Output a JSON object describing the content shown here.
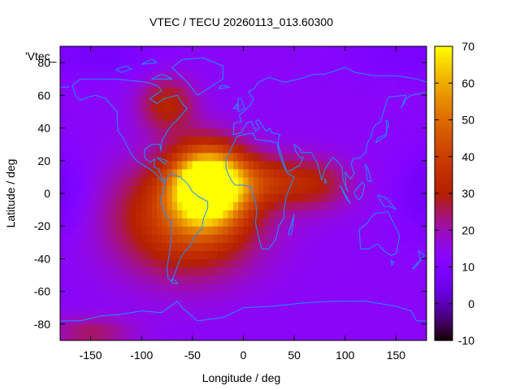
{
  "chart_data": {
    "type": "heatmap",
    "title": "VTEC / TECU 20260113_013.60300",
    "xlabel": "Longitude / deg",
    "ylabel": "Latitude / deg",
    "key_label": "'Vtec_",
    "xlim": [
      -180,
      180
    ],
    "ylim": [
      -90,
      90
    ],
    "x_ticks": [
      -150,
      -100,
      -50,
      0,
      50,
      100,
      150
    ],
    "y_ticks": [
      -80,
      -60,
      -40,
      -20,
      0,
      20,
      40,
      60,
      80
    ],
    "colorbar": {
      "min": -10,
      "max": 70,
      "ticks": [
        -10,
        0,
        10,
        20,
        30,
        40,
        50,
        60,
        70
      ],
      "palette": "gnuplot pm3d rgbformulae 7,5,15 (black-purple-red-orange-yellow)"
    },
    "field": {
      "background_tecu": 13,
      "features": [
        {
          "kind": "peak",
          "lon": -35,
          "lat": 5,
          "tecu": 64,
          "lon_sigma": 24,
          "lat_sigma": 16
        },
        {
          "kind": "enhancement",
          "lon": -55,
          "lat": -15,
          "tecu": 30,
          "lon_sigma": 50,
          "lat_sigma": 25
        },
        {
          "kind": "enhancement",
          "lon": 20,
          "lat": 8,
          "tecu": 18,
          "lon_sigma": 40,
          "lat_sigma": 11
        },
        {
          "kind": "enhancement",
          "lon": 75,
          "lat": 5,
          "tecu": 10,
          "lon_sigma": 25,
          "lat_sigma": 12
        },
        {
          "kind": "enhancement",
          "lon": -75,
          "lat": 55,
          "tecu": 18,
          "lon_sigma": 20,
          "lat_sigma": 12
        },
        {
          "kind": "enhancement",
          "lon": -150,
          "lat": -85,
          "tecu": 12,
          "lon_sigma": 30,
          "lat_sigma": 7
        },
        {
          "kind": "depression",
          "lon": -180,
          "lat": 0,
          "tecu": -7,
          "lon_sigma": 20,
          "lat_sigma": 18
        },
        {
          "kind": "depression",
          "lon": 180,
          "lat": 0,
          "tecu": -7,
          "lon_sigma": 20,
          "lat_sigma": 18
        },
        {
          "kind": "depression",
          "lon": -140,
          "lat": 83,
          "tecu": -6,
          "lon_sigma": 40,
          "lat_sigma": 8
        },
        {
          "kind": "depression",
          "lon": 160,
          "lat": 83,
          "tecu": -5,
          "lon_sigma": 40,
          "lat_sigma": 8
        }
      ]
    },
    "coastline_color": "#1e90ff",
    "frame_color": "#000000"
  }
}
